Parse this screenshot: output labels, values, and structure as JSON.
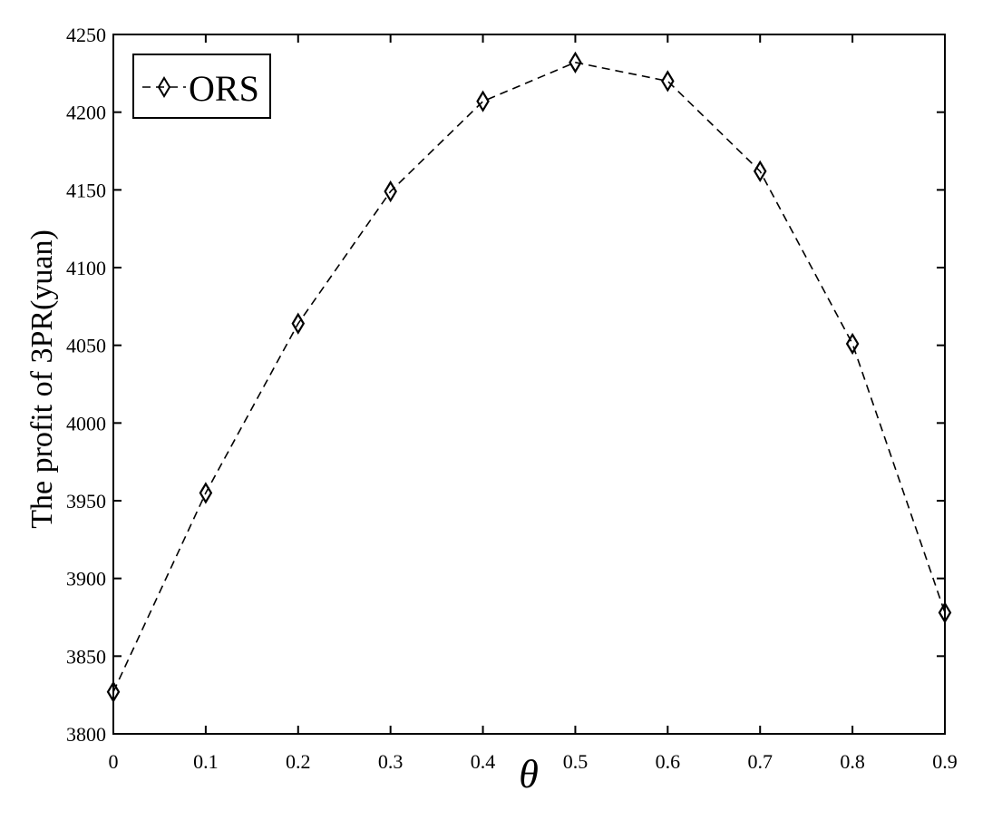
{
  "chart_data": {
    "type": "line",
    "xlabel": "θ",
    "ylabel": "The profit of 3PR(yuan)",
    "xlim": [
      0,
      0.9
    ],
    "ylim": [
      3800,
      4250
    ],
    "x_ticks": [
      "0",
      "0.1",
      "0.2",
      "0.3",
      "0.4",
      "0.5",
      "0.6",
      "0.7",
      "0.8",
      "0.9"
    ],
    "y_ticks": [
      "3800",
      "3850",
      "3900",
      "3950",
      "4000",
      "4050",
      "4100",
      "4150",
      "4200",
      "4250"
    ],
    "grid": false,
    "legend_position": "top-left",
    "series": [
      {
        "name": "ORS",
        "line_style": "dashed",
        "marker": "diamond",
        "color": "#000000",
        "x": [
          0,
          0.1,
          0.2,
          0.3,
          0.4,
          0.5,
          0.6,
          0.7,
          0.8,
          0.9
        ],
        "y": [
          3827,
          3955,
          4064,
          4149,
          4207,
          4232,
          4220,
          4162,
          4051,
          3878
        ]
      }
    ]
  }
}
